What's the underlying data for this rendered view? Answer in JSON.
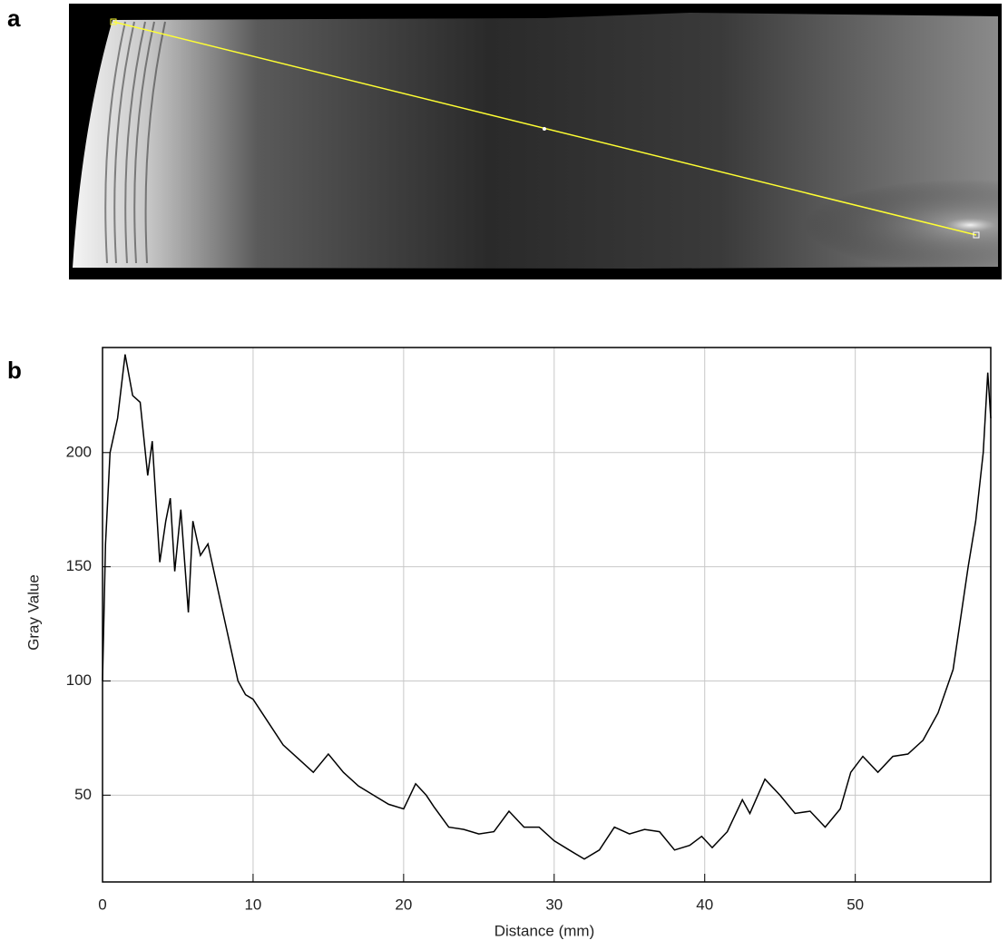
{
  "panel_labels": [
    "a",
    "b"
  ],
  "chart_data": {
    "type": "line",
    "xlabel": "Distance (mm)",
    "ylabel": "Gray Value",
    "x": [
      0,
      0.2,
      0.5,
      1,
      1.5,
      2,
      2.5,
      3,
      3.3,
      3.8,
      4.2,
      4.5,
      4.8,
      5.2,
      5.7,
      6,
      6.5,
      7,
      7.5,
      8,
      8.5,
      9,
      9.5,
      10,
      11,
      12,
      13,
      14,
      15,
      16,
      17,
      18,
      19,
      20,
      20.8,
      21.5,
      22,
      23,
      24,
      25,
      26,
      27,
      28,
      29,
      30,
      31,
      32,
      33,
      34,
      35,
      36,
      37,
      38,
      39,
      39.8,
      40.5,
      41.5,
      42.5,
      43,
      44,
      45,
      46,
      47,
      48,
      49,
      49.7,
      50.5,
      51.5,
      52.5,
      53.5,
      54.5,
      55.5,
      56.5,
      57.5,
      58,
      58.5,
      58.8,
      59
    ],
    "series": [
      {
        "color": "#000000",
        "values": [
          100,
          160,
          200,
          215,
          243,
          225,
          222,
          190,
          205,
          152,
          170,
          180,
          148,
          175,
          130,
          170,
          155,
          160,
          145,
          130,
          115,
          100,
          94,
          92,
          82,
          72,
          66,
          60,
          68,
          60,
          54,
          50,
          46,
          44,
          55,
          50,
          45,
          36,
          35,
          33,
          34,
          43,
          36,
          36,
          30,
          26,
          22,
          26,
          36,
          33,
          35,
          34,
          26,
          28,
          32,
          27,
          34,
          48,
          42,
          57,
          50,
          42,
          43,
          36,
          44,
          60,
          67,
          60,
          67,
          68,
          74,
          86,
          105,
          150,
          170,
          200,
          235,
          215
        ]
      }
    ],
    "xlim": [
      0,
      59
    ],
    "ylim": [
      12,
      246
    ],
    "xticks": [
      0,
      10,
      20,
      30,
      40,
      50
    ],
    "yticks": [
      50,
      100,
      150,
      200
    ],
    "grid": true
  }
}
